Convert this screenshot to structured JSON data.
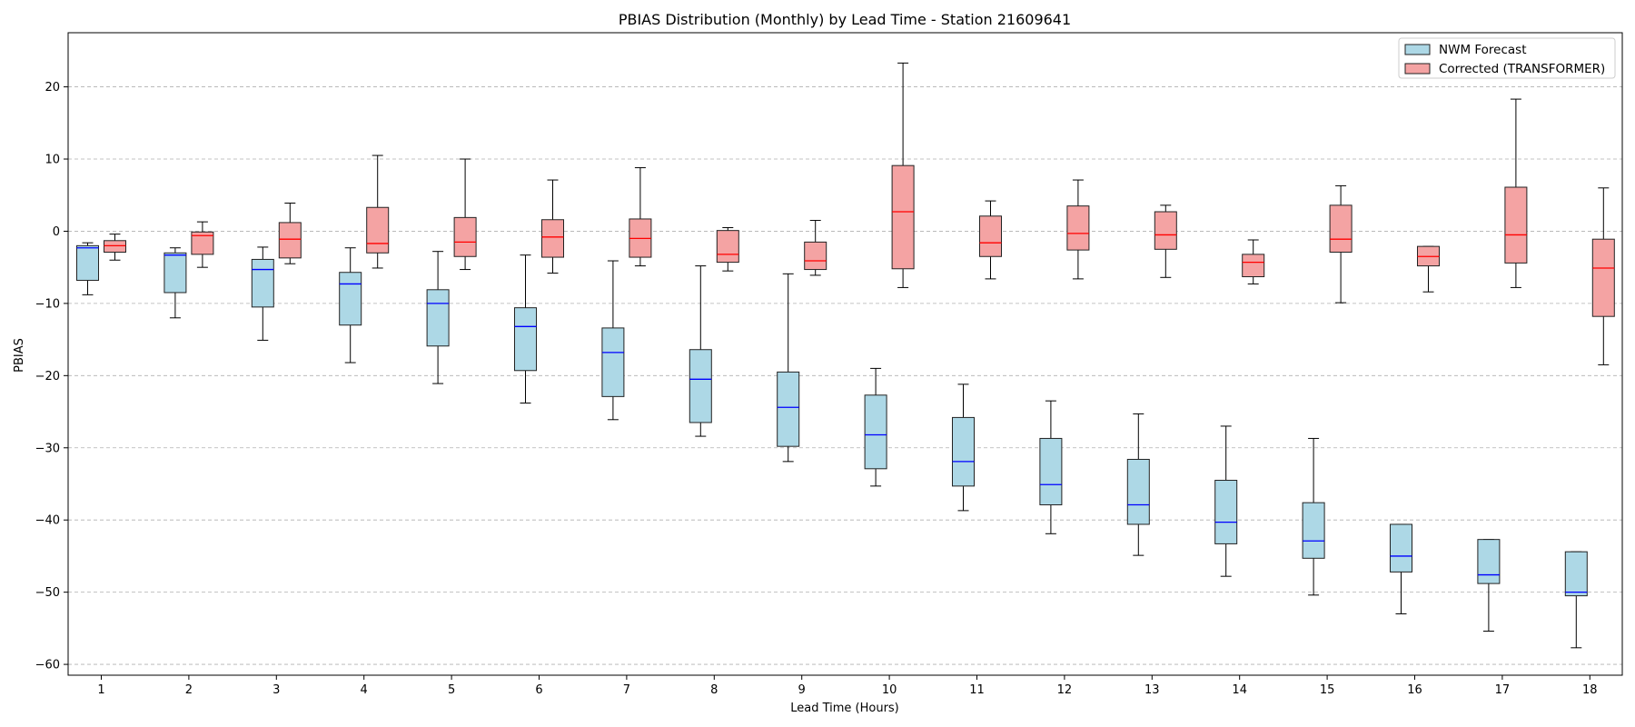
{
  "chart_data": {
    "type": "box",
    "title": "PBIAS Distribution (Monthly) by Lead Time - Station 21609641",
    "xlabel": "Lead Time (Hours)",
    "ylabel": "PBIAS",
    "ylim": [
      -61.5,
      27.5
    ],
    "yticks": [
      20,
      10,
      0,
      -10,
      -20,
      -30,
      -40,
      -50,
      -60
    ],
    "grid": "horizontal-dashed",
    "legend_position": "top-right",
    "categories": [
      "1",
      "2",
      "3",
      "4",
      "5",
      "6",
      "7",
      "8",
      "9",
      "10",
      "11",
      "12",
      "13",
      "14",
      "15",
      "16",
      "17",
      "18"
    ],
    "series": [
      {
        "name": "NWM Forecast",
        "fill": "#add8e6",
        "median_color": "#0000ff",
        "boxes": [
          {
            "whislo": -8.8,
            "q1": -6.8,
            "med": -2.3,
            "q3": -2.0,
            "whishi": -1.6
          },
          {
            "whislo": -12.0,
            "q1": -8.5,
            "med": -3.3,
            "q3": -3.0,
            "whishi": -2.3
          },
          {
            "whislo": -15.1,
            "q1": -10.5,
            "med": -5.3,
            "q3": -3.9,
            "whishi": -2.2
          },
          {
            "whislo": -18.2,
            "q1": -13.0,
            "med": -7.3,
            "q3": -5.7,
            "whishi": -2.3
          },
          {
            "whislo": -21.1,
            "q1": -15.9,
            "med": -10.0,
            "q3": -8.1,
            "whishi": -2.8
          },
          {
            "whislo": -23.8,
            "q1": -19.3,
            "med": -13.2,
            "q3": -10.6,
            "whishi": -3.3
          },
          {
            "whislo": -26.1,
            "q1": -22.9,
            "med": -16.8,
            "q3": -13.4,
            "whishi": -4.1
          },
          {
            "whislo": -28.4,
            "q1": -26.5,
            "med": -20.5,
            "q3": -16.4,
            "whishi": -4.8
          },
          {
            "whislo": -31.9,
            "q1": -29.8,
            "med": -24.4,
            "q3": -19.5,
            "whishi": -5.9
          },
          {
            "whislo": -35.3,
            "q1": -32.9,
            "med": -28.2,
            "q3": -22.7,
            "whishi": -19.0
          },
          {
            "whislo": -38.7,
            "q1": -35.3,
            "med": -31.9,
            "q3": -25.8,
            "whishi": -21.2
          },
          {
            "whislo": -41.9,
            "q1": -37.9,
            "med": -35.1,
            "q3": -28.7,
            "whishi": -23.5
          },
          {
            "whislo": -44.9,
            "q1": -40.6,
            "med": -37.9,
            "q3": -31.6,
            "whishi": -25.3
          },
          {
            "whislo": -47.8,
            "q1": -43.3,
            "med": -40.3,
            "q3": -34.5,
            "whishi": -27.0
          },
          {
            "whislo": -50.4,
            "q1": -45.3,
            "med": -42.9,
            "q3": -37.6,
            "whishi": -28.7
          },
          {
            "whislo": -53.0,
            "q1": -47.2,
            "med": -45.0,
            "q3": -40.6,
            "whishi": -40.6
          },
          {
            "whislo": -55.4,
            "q1": -48.8,
            "med": -47.6,
            "q3": -42.7,
            "whishi": -42.7
          },
          {
            "whislo": -57.7,
            "q1": -50.5,
            "med": -50.0,
            "q3": -44.4,
            "whishi": -44.4
          }
        ]
      },
      {
        "name": "Corrected (TRANSFORMER)",
        "fill": "#f4a3a3",
        "median_color": "#ff0000",
        "boxes": [
          {
            "whislo": -4.0,
            "q1": -2.9,
            "med": -2.0,
            "q3": -1.3,
            "whishi": -0.4
          },
          {
            "whislo": -5.0,
            "q1": -3.2,
            "med": -0.6,
            "q3": -0.1,
            "whishi": 1.3
          },
          {
            "whislo": -4.5,
            "q1": -3.7,
            "med": -1.1,
            "q3": 1.2,
            "whishi": 3.9
          },
          {
            "whislo": -5.1,
            "q1": -3.0,
            "med": -1.7,
            "q3": 3.3,
            "whishi": 10.5
          },
          {
            "whislo": -5.3,
            "q1": -3.5,
            "med": -1.5,
            "q3": 1.9,
            "whishi": 10.0
          },
          {
            "whislo": -5.8,
            "q1": -3.6,
            "med": -0.8,
            "q3": 1.6,
            "whishi": 7.1
          },
          {
            "whislo": -4.8,
            "q1": -3.6,
            "med": -1.0,
            "q3": 1.7,
            "whishi": 8.8
          },
          {
            "whislo": -5.5,
            "q1": -4.3,
            "med": -3.2,
            "q3": 0.1,
            "whishi": 0.5
          },
          {
            "whislo": -6.1,
            "q1": -5.3,
            "med": -4.1,
            "q3": -1.5,
            "whishi": 1.5
          },
          {
            "whislo": -7.8,
            "q1": -5.2,
            "med": 2.7,
            "q3": 9.1,
            "whishi": 23.3
          },
          {
            "whislo": -6.6,
            "q1": -3.5,
            "med": -1.6,
            "q3": 2.1,
            "whishi": 4.2
          },
          {
            "whislo": -6.6,
            "q1": -2.6,
            "med": -0.3,
            "q3": 3.5,
            "whishi": 7.1
          },
          {
            "whislo": -6.4,
            "q1": -2.5,
            "med": -0.5,
            "q3": 2.7,
            "whishi": 3.6
          },
          {
            "whislo": -7.3,
            "q1": -6.3,
            "med": -4.3,
            "q3": -3.2,
            "whishi": -1.2
          },
          {
            "whislo": -9.9,
            "q1": -2.9,
            "med": -1.1,
            "q3": 3.6,
            "whishi": 6.3
          },
          {
            "whislo": -8.4,
            "q1": -4.8,
            "med": -3.5,
            "q3": -2.1,
            "whishi": -2.1
          },
          {
            "whislo": -7.8,
            "q1": -4.4,
            "med": -0.5,
            "q3": 6.1,
            "whishi": 18.3
          },
          {
            "whislo": -18.5,
            "q1": -11.8,
            "med": -5.1,
            "q3": -1.1,
            "whishi": 6.0
          }
        ]
      }
    ]
  }
}
